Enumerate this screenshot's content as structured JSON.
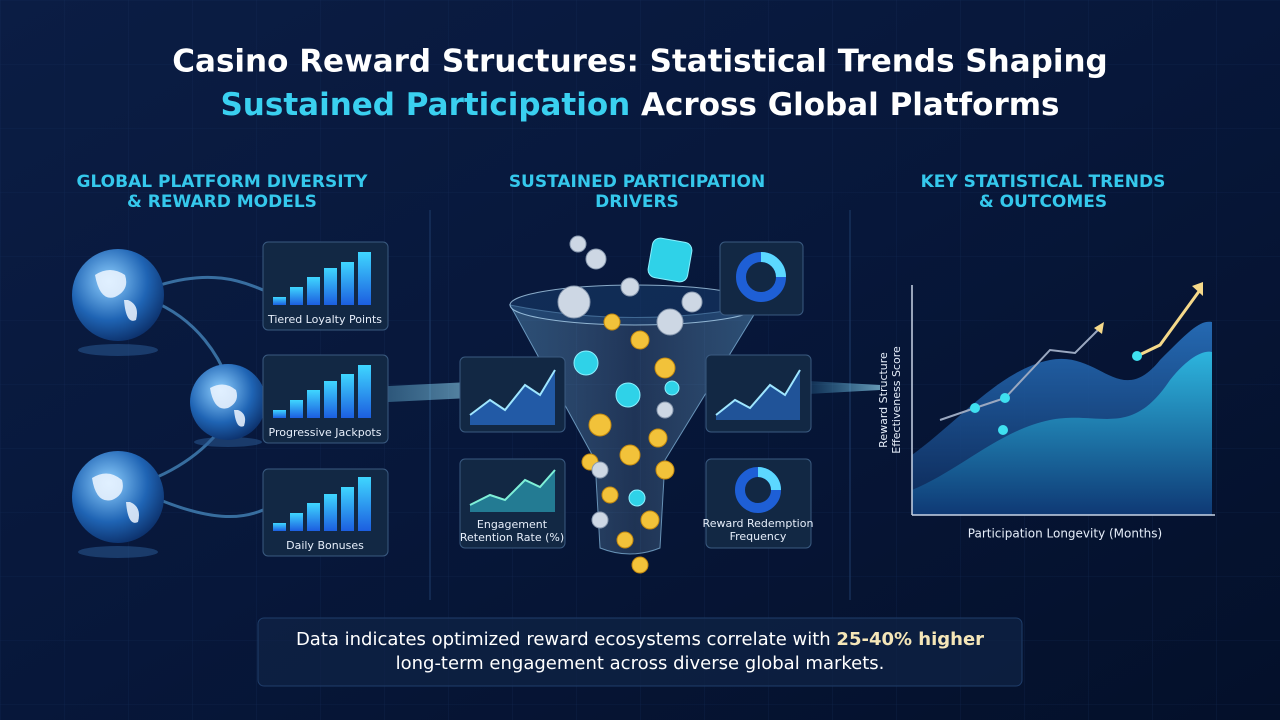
{
  "header": {
    "title_line1": "Casino Reward Structures: Statistical Trends Shaping",
    "title_highlight": "Sustained Participation",
    "title_rest": " Across Global Platforms"
  },
  "sections": [
    {
      "lines": [
        "GLOBAL PLATFORM DIVERSITY",
        "& REWARD MODELS"
      ]
    },
    {
      "lines": [
        "SUSTAINED PARTICIPATION",
        "DRIVERS"
      ]
    },
    {
      "lines": [
        "KEY STATISTICAL TRENDS",
        "& OUTCOMES"
      ]
    }
  ],
  "reward_models": [
    "Tiered Loyalty Points",
    "Progressive Jackpots",
    "Daily Bonuses"
  ],
  "drivers": [
    {
      "lines": [
        "Engagement",
        "Retention Rate (%)"
      ]
    },
    {
      "lines": [
        "Reward Redemption",
        "Frequency"
      ]
    }
  ],
  "trend_chart": {
    "y_label_lines": [
      "Reward Structure",
      "Effectiveness Score"
    ],
    "x_label": "Participation Longevity (Months)"
  },
  "footer": {
    "text_before": "Data indicates optimized reward ecosystems correlate with ",
    "highlight": "25-40% higher",
    "text_line2": "long-term engagement across diverse global markets."
  }
}
